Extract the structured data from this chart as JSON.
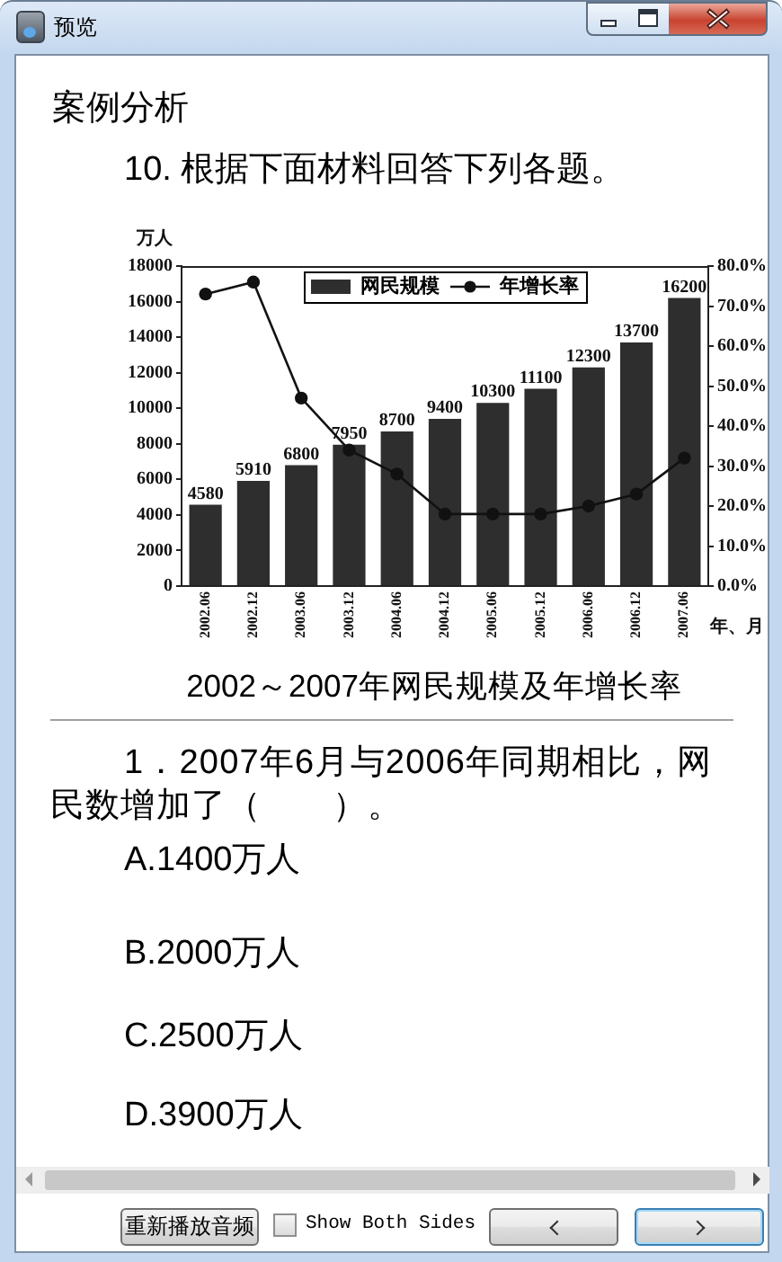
{
  "chart_data": {
    "type": "bar",
    "title": "2002～2007年网民规模及年增长率",
    "xlabel": "年、月",
    "ylabel": "万人",
    "categories": [
      "2002.06",
      "2002.12",
      "2003.06",
      "2003.12",
      "2004.06",
      "2004.12",
      "2005.06",
      "2005.12",
      "2006.06",
      "2006.12",
      "2007.06"
    ],
    "series": [
      {
        "name": "网民规模",
        "color": "#2e2e2e",
        "values": [
          4580,
          5910,
          6800,
          7950,
          8700,
          9400,
          10300,
          11100,
          12300,
          13700,
          16200
        ],
        "value_labels": [
          "4580",
          "5910",
          "6800",
          "7950",
          "8700",
          "9400",
          "10300",
          "11100",
          "12300",
          "13700",
          "16200"
        ]
      },
      {
        "name": "年增长率",
        "type": "line",
        "axis": "y2",
        "color": "#111111",
        "values": [
          73,
          76,
          47,
          34,
          28,
          18,
          18,
          18,
          20,
          23,
          32
        ]
      }
    ],
    "ylim": [
      0,
      18000
    ],
    "yticks": [
      0,
      2000,
      4000,
      6000,
      8000,
      10000,
      12000,
      14000,
      16000,
      18000
    ],
    "y2lim": [
      0,
      80
    ],
    "y2ticks": [
      {
        "value": 0,
        "label": "0.0%"
      },
      {
        "value": 10,
        "label": "10.0%"
      },
      {
        "value": 20,
        "label": "20.0%"
      },
      {
        "value": 30,
        "label": "30.0%"
      },
      {
        "value": 40,
        "label": "40.0%"
      },
      {
        "value": 50,
        "label": "50.0%"
      },
      {
        "value": 60,
        "label": "60.0%"
      },
      {
        "value": 70,
        "label": "70.0%"
      },
      {
        "value": 80,
        "label": "80.0%"
      }
    ],
    "legend": "top",
    "grid": false,
    "marker": "circle",
    "line_style": "solid",
    "annotations": [
      "预览",
      "案例分析",
      "10. 根据下面材料回答下列各题。",
      "1．2007年6月与2006年同期相比，网民数增加了（　　）。",
      "A.1400万人",
      "B.2000万人",
      "C.2500万人",
      "D.3900万人",
      "重新播放音频",
      "Show Both Sides"
    ]
  }
}
